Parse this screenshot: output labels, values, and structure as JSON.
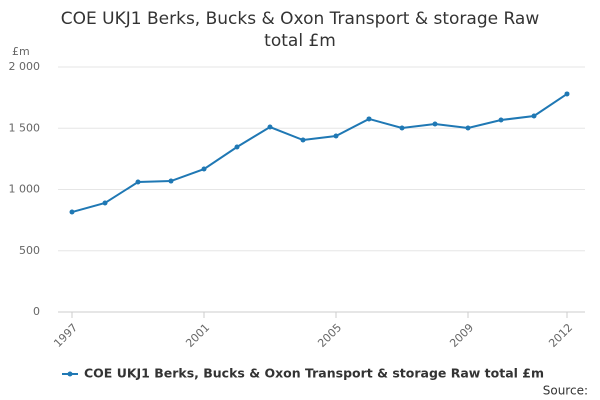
{
  "chart_data": {
    "type": "line",
    "title": "COE UKJ1 Berks, Bucks & Oxon Transport & storage Raw total £m",
    "y_label": "£m",
    "source": "Source:",
    "x": [
      1997,
      1998,
      1999,
      2000,
      2001,
      2002,
      2003,
      2004,
      2005,
      2006,
      2007,
      2008,
      2009,
      2010,
      2011,
      2012
    ],
    "series": [
      {
        "name": "COE UKJ1 Berks, Bucks & Oxon Transport & storage Raw total £m",
        "color": "#1f78b4",
        "values": [
          816,
          890,
          1061,
          1069,
          1167,
          1347,
          1510,
          1404,
          1437,
          1576,
          1502,
          1535,
          1502,
          1567,
          1600,
          1780
        ]
      }
    ],
    "xlim": [
      1997,
      2012
    ],
    "xticks": [
      1997,
      2001,
      2005,
      2009,
      2012
    ],
    "ylim": [
      0,
      2000
    ],
    "yticks": [
      0,
      500,
      {
        "value": 1000,
        "label": "1 000"
      },
      {
        "value": 1500,
        "label": "1 500"
      },
      {
        "value": 2000,
        "label": "2 000"
      }
    ],
    "grid": true,
    "legend": "bottom-left"
  }
}
